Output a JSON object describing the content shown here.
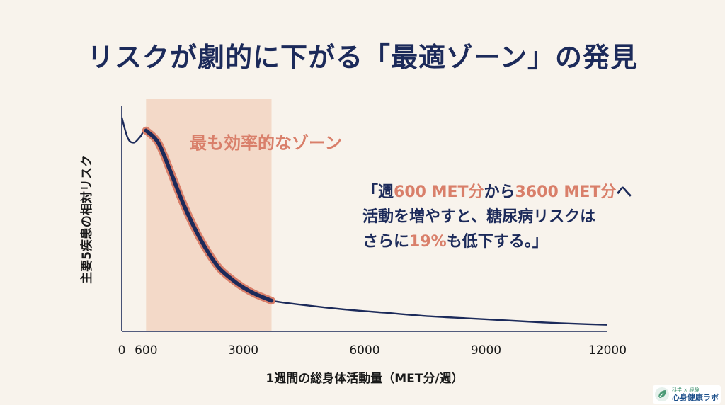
{
  "title": "リスクが劇的に下がる「最適ゾーン」の発見",
  "quote": {
    "line1_pre": "「週",
    "line1_hl1": "600 MET分",
    "line1_mid": "から",
    "line1_hl2": "3600 MET分",
    "line1_post": "へ",
    "line2": "活動を増やすと、糖尿病リスクは",
    "line3_pre": "さらに",
    "line3_hl": "19%",
    "line3_post": "も低下する。」"
  },
  "logo": {
    "sub": "科学 × 経験",
    "main": "心身健康ラボ"
  },
  "colors": {
    "navy": "#1c2a5a",
    "accent": "#d97f6a",
    "zone": "#f3d9c8",
    "background": "#f8f3ec"
  },
  "chart_data": {
    "type": "line",
    "title": "",
    "xlabel": "1週間の総身体活動量（MET分/週）",
    "ylabel": "主要5疾患の相対リスク",
    "xlim": [
      0,
      12000
    ],
    "ylim": [
      0,
      1
    ],
    "x_ticks": [
      0,
      600,
      3000,
      6000,
      9000,
      12000
    ],
    "x_tick_labels": [
      "0",
      "600",
      "3000",
      "6000",
      "9000",
      "12000"
    ],
    "zone": {
      "x_start": 600,
      "x_end": 3700,
      "label": "最も効率的なゾーン"
    },
    "series": [
      {
        "name": "相対リスク",
        "x": [
          0,
          150,
          300,
          450,
          600,
          900,
          1200,
          1500,
          1800,
          2100,
          2400,
          2700,
          3000,
          3300,
          3700,
          4500,
          5500,
          6500,
          7500,
          8500,
          9500,
          10500,
          11500,
          12000
        ],
        "y": [
          0.975,
          0.88,
          0.86,
          0.885,
          0.915,
          0.86,
          0.73,
          0.59,
          0.47,
          0.37,
          0.29,
          0.24,
          0.2,
          0.17,
          0.14,
          0.12,
          0.1,
          0.085,
          0.07,
          0.06,
          0.05,
          0.04,
          0.033,
          0.03
        ]
      }
    ]
  }
}
